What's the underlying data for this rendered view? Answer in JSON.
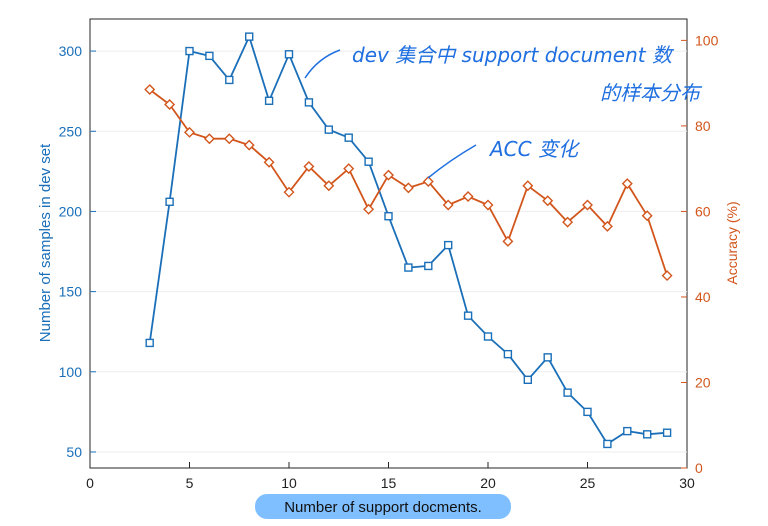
{
  "chart_data": {
    "type": "line",
    "xlabel": "Number of support docments.",
    "ylabel_left": "Number of samples in dev set",
    "ylabel_right": "Accuracy (%)",
    "xlim": [
      0,
      30
    ],
    "ylim_left": [
      40,
      320
    ],
    "ylim_right": [
      0,
      105
    ],
    "xticks": [
      "0",
      "5",
      "10",
      "15",
      "20",
      "25",
      "30"
    ],
    "yticks_left": [
      "50",
      "100",
      "150",
      "200",
      "250",
      "300"
    ],
    "yticks_right": [
      "0",
      "20",
      "40",
      "60",
      "80",
      "100"
    ],
    "x": [
      3,
      4,
      5,
      6,
      7,
      8,
      9,
      10,
      11,
      12,
      13,
      14,
      15,
      16,
      17,
      18,
      19,
      20,
      21,
      22,
      23,
      24,
      25,
      26,
      27,
      28,
      29
    ],
    "series": [
      {
        "axis": "left",
        "color": "#1a6fb8",
        "marker": "square",
        "values": [
          118,
          206,
          300,
          297,
          282,
          309,
          269,
          298,
          268,
          251,
          246,
          231,
          197,
          165,
          166,
          179,
          135,
          122,
          111,
          95,
          109,
          87,
          75,
          55,
          63,
          61,
          62
        ]
      },
      {
        "axis": "right",
        "color": "#d2561c",
        "marker": "diamond",
        "values": [
          88.5,
          85,
          78.5,
          77,
          77,
          75.5,
          71.5,
          64.5,
          70.5,
          66,
          70,
          60.5,
          68.5,
          65.5,
          67,
          61.5,
          63.5,
          61.5,
          53,
          66,
          62.5,
          57.5,
          61.5,
          56.5,
          66.5,
          59,
          45
        ]
      }
    ],
    "annotations": [
      "dev 集合中 support document 数",
      "的样本分布",
      "ACC 变化"
    ],
    "grid": false
  }
}
